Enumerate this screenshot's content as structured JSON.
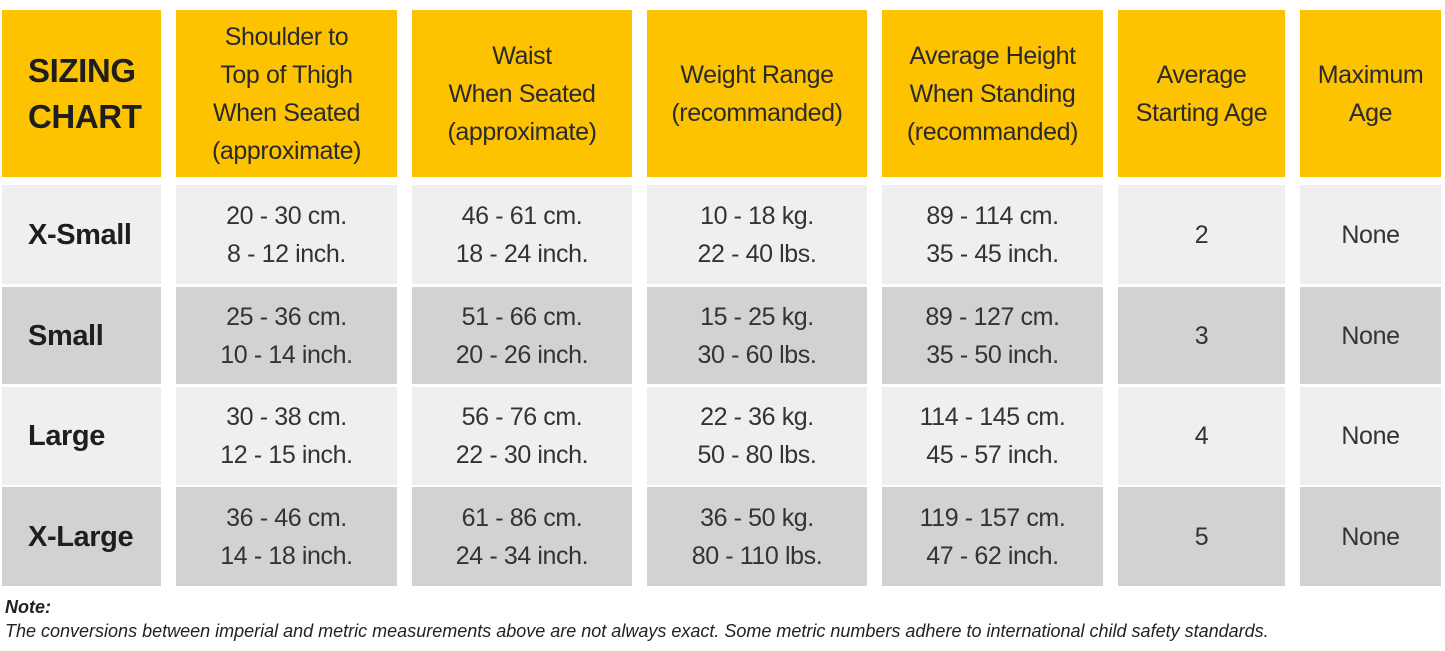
{
  "table": {
    "header": [
      [
        "SIZING",
        "CHART"
      ],
      [
        "Shoulder to",
        "Top of Thigh",
        "When Seated",
        "(approximate)"
      ],
      [
        "Waist",
        "When Seated",
        "(approximate)"
      ],
      [
        "Weight Range",
        "(recommanded)"
      ],
      [
        "Average Height",
        "When Standing",
        "(recommanded)"
      ],
      [
        "Average",
        "Starting Age"
      ],
      [
        "Maximum",
        "Age"
      ]
    ],
    "rows": [
      [
        [
          "X-Small"
        ],
        [
          "20 - 30 cm.",
          "8 - 12 inch."
        ],
        [
          "46 - 61 cm.",
          "18 - 24 inch."
        ],
        [
          "10 - 18 kg.",
          "22 - 40 lbs."
        ],
        [
          "89 - 114 cm.",
          "35 - 45 inch."
        ],
        [
          "2"
        ],
        [
          "None"
        ]
      ],
      [
        [
          "Small"
        ],
        [
          "25 - 36 cm.",
          "10 - 14 inch."
        ],
        [
          "51 - 66 cm.",
          "20 - 26 inch."
        ],
        [
          "15 - 25 kg.",
          "30 - 60 lbs."
        ],
        [
          "89 - 127 cm.",
          "35 - 50 inch."
        ],
        [
          "3"
        ],
        [
          "None"
        ]
      ],
      [
        [
          "Large"
        ],
        [
          "30 - 38 cm.",
          "12 - 15 inch."
        ],
        [
          "56 - 76 cm.",
          "22 - 30 inch."
        ],
        [
          "22 - 36 kg.",
          "50 - 80 lbs."
        ],
        [
          "114 - 145 cm.",
          "45 - 57 inch."
        ],
        [
          "4"
        ],
        [
          "None"
        ]
      ],
      [
        [
          "X-Large"
        ],
        [
          "36 - 46 cm.",
          "14 - 18 inch."
        ],
        [
          "61 - 86 cm.",
          "24 - 34 inch."
        ],
        [
          "36 - 50 kg.",
          "80 - 110 lbs."
        ],
        [
          "119 - 157 cm.",
          "47 - 62 inch."
        ],
        [
          "5"
        ],
        [
          "None"
        ]
      ]
    ]
  },
  "note": {
    "title": "Note:",
    "text": "The conversions between imperial and metric measurements above are not always exact. Some metric numbers adhere to international child safety standards."
  }
}
